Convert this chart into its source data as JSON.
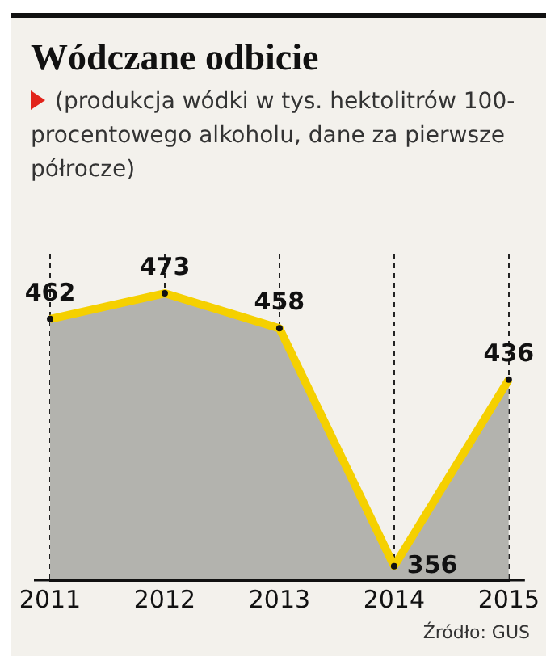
{
  "chart_data": {
    "type": "area",
    "title": "Wódczane odbicie",
    "subtitle": "(produkcja wódki w tys. hektolitrów 100-procentowego alkoholu, dane za pierwsze półrocze)",
    "categories": [
      "2011",
      "2012",
      "2013",
      "2014",
      "2015"
    ],
    "values": [
      462,
      473,
      458,
      356,
      436
    ],
    "color": "#f5d000",
    "ylim": [
      350,
      490
    ],
    "tick_labels": "x",
    "grid": "x",
    "line_style": "solid",
    "marker": "circle",
    "data_labels": true,
    "legend": false,
    "annotations": [
      "Źródło: GUS"
    ]
  }
}
